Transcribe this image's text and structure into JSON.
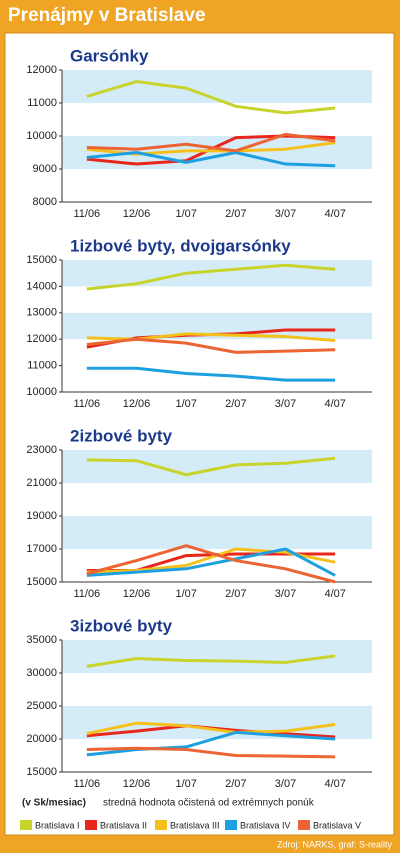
{
  "title": "Prenájmy v Bratislave",
  "note_unit": "(v Sk/mesiac)",
  "note_text": "stredná hodnota očistená od extrémnych ponúk",
  "source": "Zdroj: NARKS, graf: S-reality",
  "chart_data": [
    {
      "type": "line",
      "title": "Garsónky",
      "categories": [
        "11/06",
        "12/06",
        "1/07",
        "2/07",
        "3/07",
        "4/07"
      ],
      "ylim": [
        8000,
        12000
      ],
      "yticks": [
        8000,
        9000,
        10000,
        11000,
        12000
      ],
      "bands": [
        [
          11000,
          12000
        ],
        [
          9000,
          10000
        ]
      ],
      "series": [
        {
          "name": "Bratislava I",
          "color": "#c8d42c",
          "values": [
            11200,
            11650,
            11450,
            10900,
            10700,
            10850
          ]
        },
        {
          "name": "Bratislava II",
          "color": "#e8261c",
          "values": [
            9300,
            9150,
            9250,
            9950,
            10000,
            9950
          ]
        },
        {
          "name": "Bratislava III",
          "color": "#f4c01c",
          "values": [
            9600,
            9450,
            9550,
            9550,
            9600,
            9800
          ]
        },
        {
          "name": "Bratislava IV",
          "color": "#1ea0e0",
          "values": [
            9350,
            9500,
            9200,
            9500,
            9150,
            9100
          ]
        },
        {
          "name": "Bratislava V",
          "color": "#ec6434",
          "values": [
            9650,
            9600,
            9750,
            9550,
            10050,
            9850
          ]
        }
      ]
    },
    {
      "type": "line",
      "title": "1izbové byty, dvojgarsónky",
      "categories": [
        "11/06",
        "12/06",
        "1/07",
        "2/07",
        "3/07",
        "4/07"
      ],
      "ylim": [
        10000,
        15000
      ],
      "yticks": [
        10000,
        11000,
        12000,
        13000,
        14000,
        15000
      ],
      "bands": [
        [
          14000,
          15000
        ],
        [
          12000,
          13000
        ]
      ],
      "series": [
        {
          "name": "Bratislava I",
          "color": "#c8d42c",
          "values": [
            13900,
            14100,
            14500,
            14650,
            14800,
            14650
          ]
        },
        {
          "name": "Bratislava II",
          "color": "#e8261c",
          "values": [
            11700,
            12050,
            12150,
            12200,
            12350,
            12350
          ]
        },
        {
          "name": "Bratislava III",
          "color": "#f4c01c",
          "values": [
            12050,
            12000,
            12200,
            12150,
            12100,
            11950
          ]
        },
        {
          "name": "Bratislava IV",
          "color": "#1ea0e0",
          "values": [
            10900,
            10900,
            10700,
            10600,
            10450,
            10450
          ]
        },
        {
          "name": "Bratislava V",
          "color": "#ec6434",
          "values": [
            11800,
            12000,
            11850,
            11500,
            11550,
            11600
          ]
        }
      ]
    },
    {
      "type": "line",
      "title": "2izbové byty",
      "categories": [
        "11/06",
        "12/06",
        "1/07",
        "2/07",
        "3/07",
        "4/07"
      ],
      "ylim": [
        15000,
        23000
      ],
      "yticks": [
        15000,
        17000,
        19000,
        21000,
        23000
      ],
      "bands": [
        [
          21000,
          23000
        ],
        [
          17000,
          19000
        ]
      ],
      "series": [
        {
          "name": "Bratislava I",
          "color": "#c8d42c",
          "values": [
            22400,
            22350,
            21500,
            22100,
            22200,
            22500
          ]
        },
        {
          "name": "Bratislava II",
          "color": "#e8261c",
          "values": [
            15700,
            15700,
            16600,
            16700,
            16700,
            16700
          ]
        },
        {
          "name": "Bratislava III",
          "color": "#f4c01c",
          "values": [
            15600,
            15700,
            16000,
            17000,
            16800,
            16200
          ]
        },
        {
          "name": "Bratislava IV",
          "color": "#1ea0e0",
          "values": [
            15400,
            15600,
            15800,
            16400,
            17000,
            15400
          ]
        },
        {
          "name": "Bratislava V",
          "color": "#ec6434",
          "values": [
            15500,
            16300,
            17200,
            16300,
            15800,
            15000
          ]
        }
      ]
    },
    {
      "type": "line",
      "title": "3izbové byty",
      "categories": [
        "11/06",
        "12/06",
        "1/07",
        "2/07",
        "3/07",
        "4/07"
      ],
      "ylim": [
        15000,
        35000
      ],
      "yticks": [
        15000,
        20000,
        25000,
        30000,
        35000
      ],
      "bands": [
        [
          30000,
          35000
        ],
        [
          20000,
          25000
        ]
      ],
      "series": [
        {
          "name": "Bratislava I",
          "color": "#c8d42c",
          "values": [
            31000,
            32200,
            31900,
            31800,
            31600,
            32600
          ]
        },
        {
          "name": "Bratislava II",
          "color": "#e8261c",
          "values": [
            20500,
            21200,
            22000,
            21300,
            20800,
            20300
          ]
        },
        {
          "name": "Bratislava III",
          "color": "#f4c01c",
          "values": [
            20800,
            22400,
            22000,
            21000,
            21200,
            22200
          ]
        },
        {
          "name": "Bratislava IV",
          "color": "#1ea0e0",
          "values": [
            17600,
            18400,
            18800,
            21000,
            20500,
            20000
          ]
        },
        {
          "name": "Bratislava V",
          "color": "#ec6434",
          "values": [
            18400,
            18600,
            18400,
            17500,
            17400,
            17300
          ]
        }
      ]
    }
  ]
}
